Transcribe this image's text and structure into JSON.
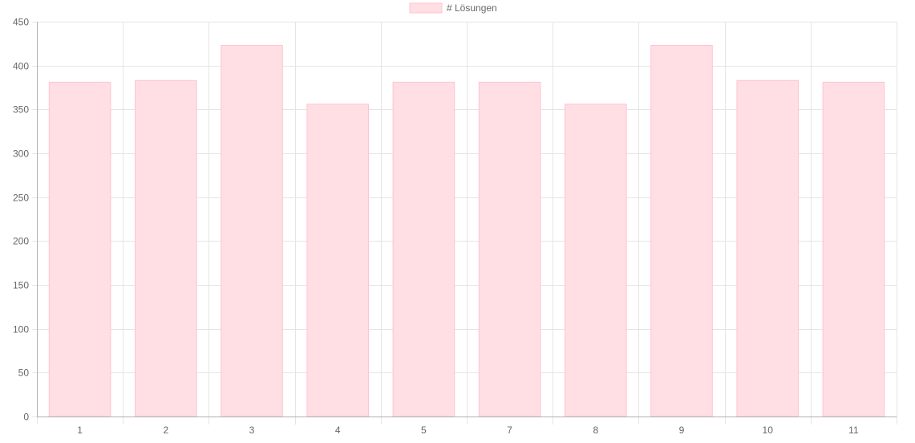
{
  "chart_data": {
    "type": "bar",
    "categories": [
      "1",
      "2",
      "3",
      "4",
      "5",
      "7",
      "8",
      "9",
      "10",
      "11"
    ],
    "series": [
      {
        "name": "# Lösungen",
        "values": [
          381,
          383,
          423,
          356,
          381,
          381,
          356,
          423,
          383,
          381
        ]
      }
    ],
    "ylim": [
      0,
      450
    ],
    "yticks": [
      0,
      50,
      100,
      150,
      200,
      250,
      300,
      350,
      400,
      450
    ],
    "grid": true,
    "legend_position": "top",
    "colors": {
      "bar_fill": "#ffdee4",
      "bar_border": "#ffc4d0",
      "grid": "#e5e5e5",
      "axis": "#b0b0b0",
      "text": "#666666"
    }
  }
}
